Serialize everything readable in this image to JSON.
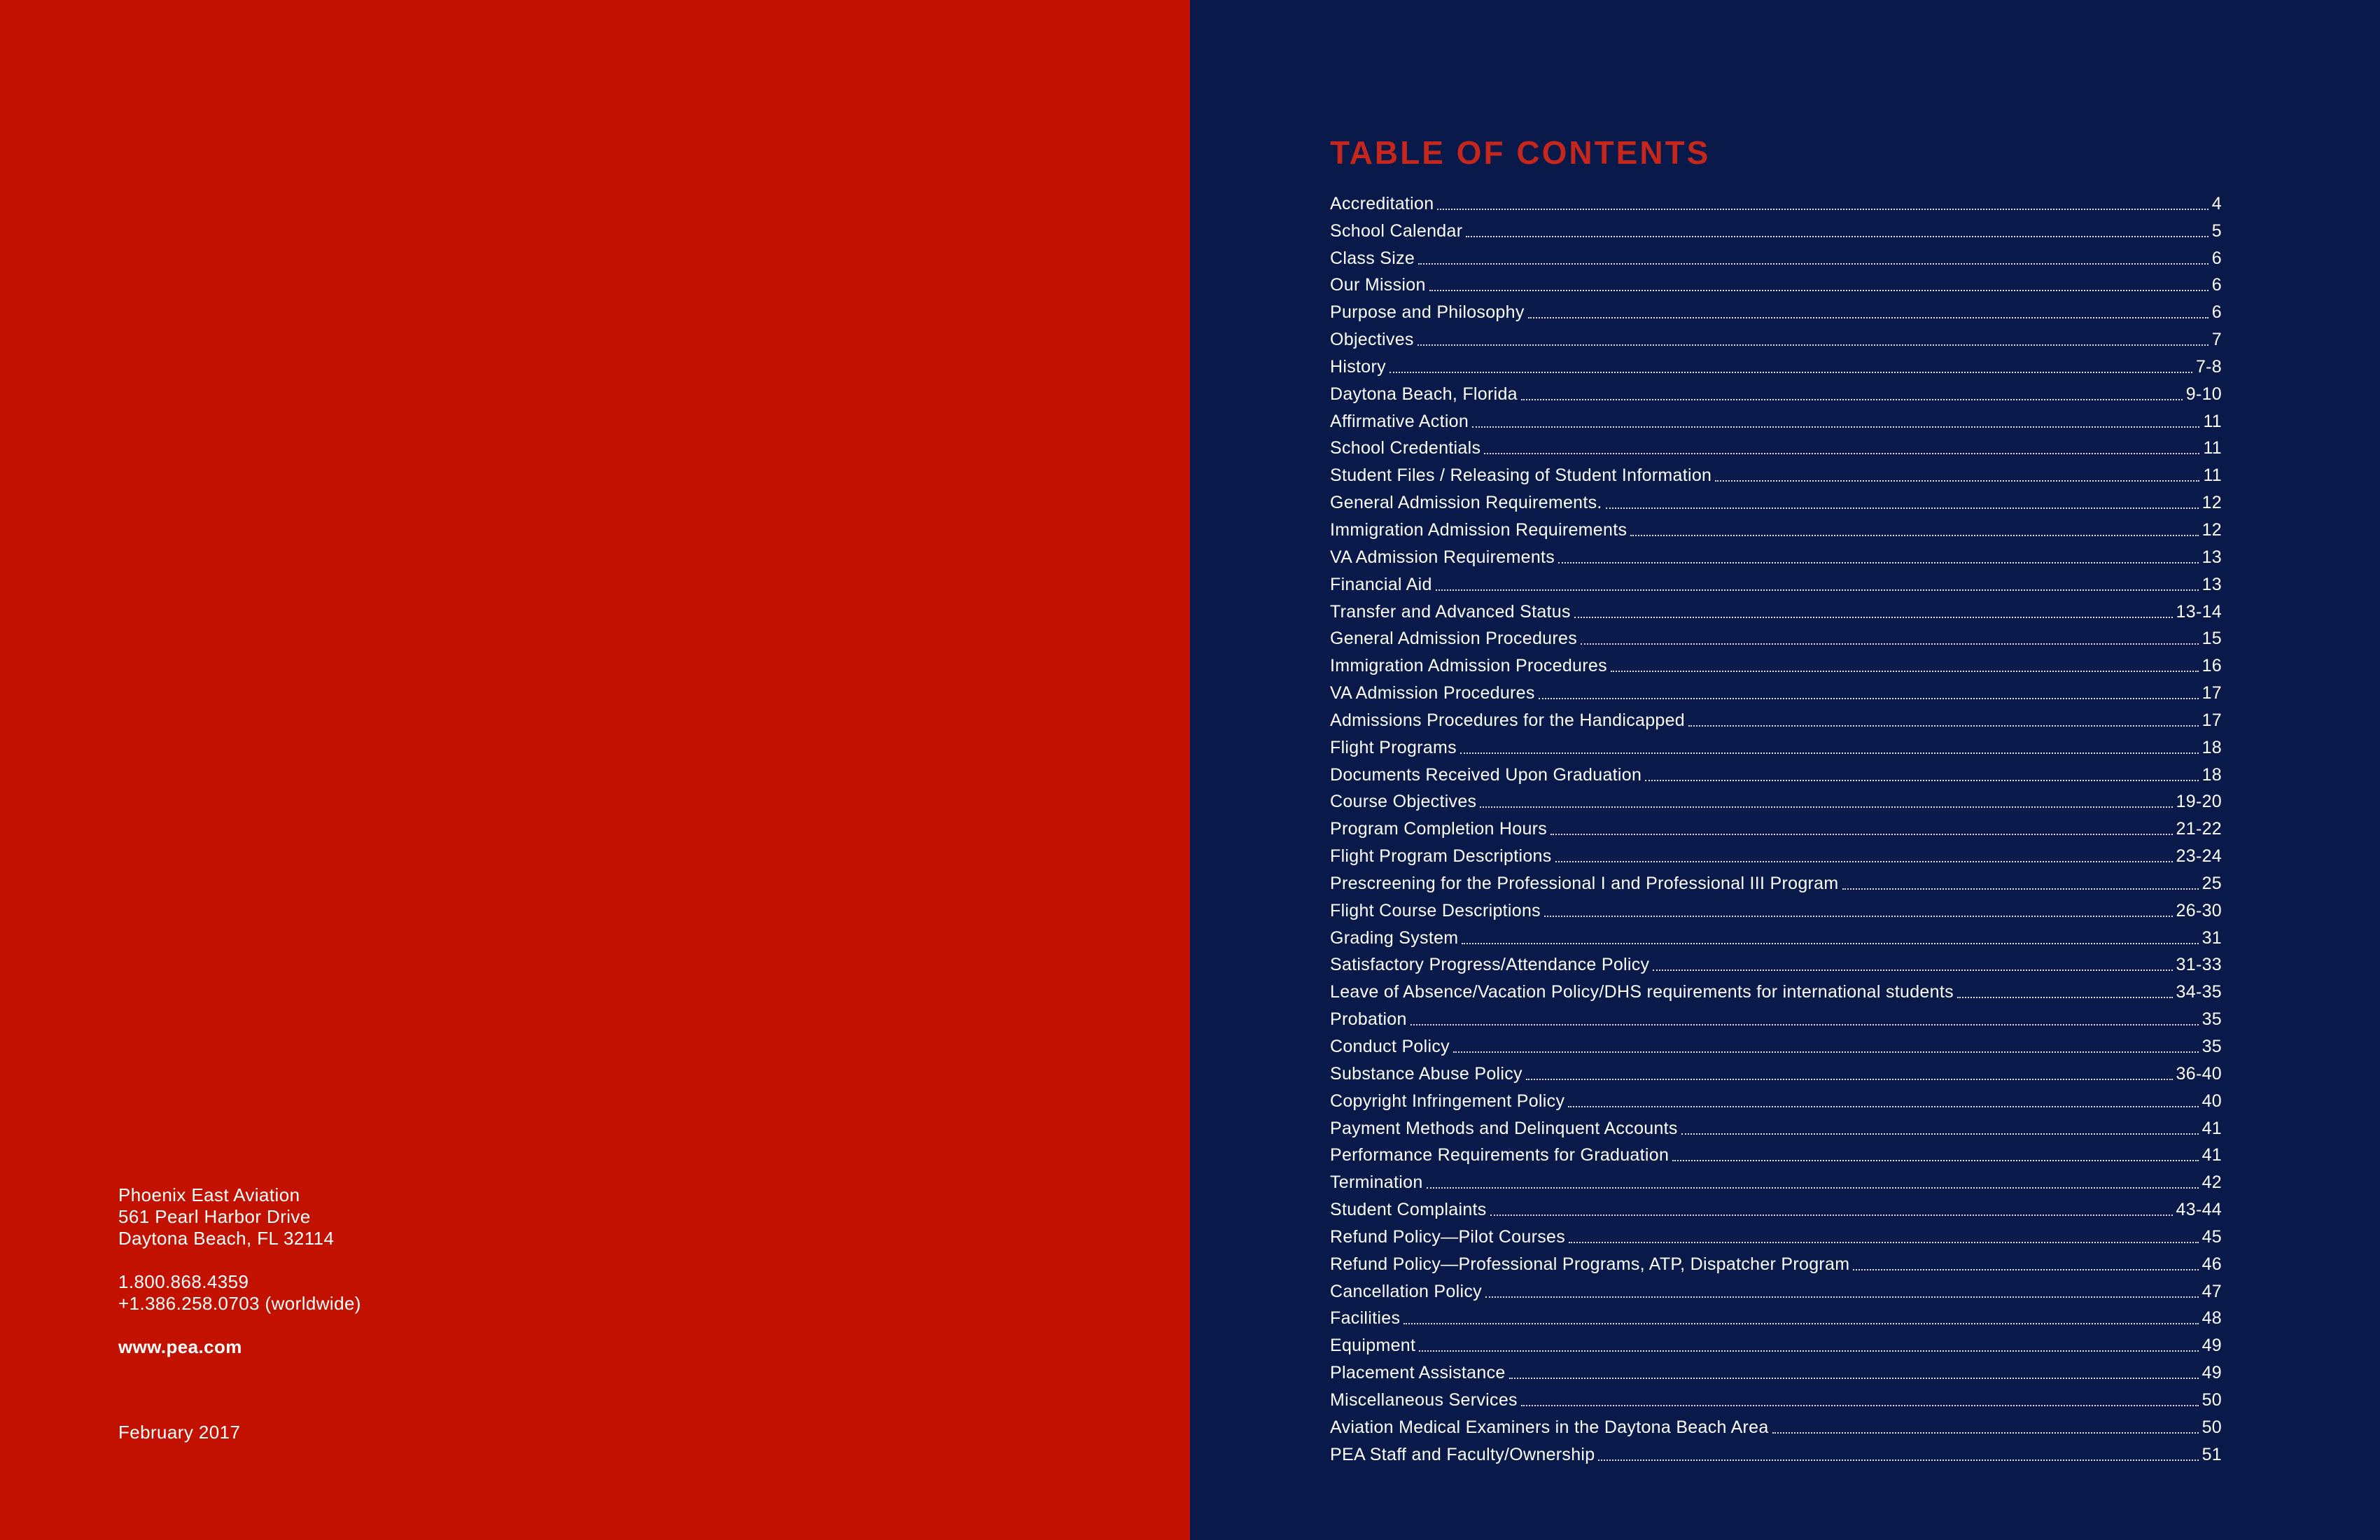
{
  "colors": {
    "left_bg": "#c31100",
    "right_bg": "#08194a",
    "title_red": "#c5271c",
    "text_white": "#ffffff"
  },
  "left_panel": {
    "org_name": "Phoenix East Aviation",
    "address_line1": "561 Pearl Harbor Drive",
    "address_line2": "Daytona Beach, FL 32114",
    "phone_tollfree": "1.800.868.4359",
    "phone_worldwide": "+1.386.258.0703 (worldwide)",
    "website": "www.pea.com",
    "date": "February 2017"
  },
  "right_panel": {
    "title": "TABLE OF CONTENTS",
    "entries": [
      {
        "label": "Accreditation",
        "page": "4"
      },
      {
        "label": "School Calendar",
        "page": "5"
      },
      {
        "label": "Class Size",
        "page": "6"
      },
      {
        "label": "Our Mission",
        "page": "6"
      },
      {
        "label": "Purpose and Philosophy",
        "page": "6"
      },
      {
        "label": "Objectives",
        "page": "7"
      },
      {
        "label": "History",
        "page": "7-8"
      },
      {
        "label": "Daytona Beach, Florida",
        "page": "9-10"
      },
      {
        "label": "Affirmative Action",
        "page": "11"
      },
      {
        "label": "School Credentials",
        "page": "11"
      },
      {
        "label": "Student Files / Releasing of Student Information",
        "page": "11"
      },
      {
        "label": "General Admission Requirements.",
        "page": "12"
      },
      {
        "label": "Immigration Admission Requirements",
        "page": "12"
      },
      {
        "label": "VA Admission Requirements",
        "page": "13"
      },
      {
        "label": "Financial Aid",
        "page": "13"
      },
      {
        "label": "Transfer and Advanced Status",
        "page": "13-14"
      },
      {
        "label": "General Admission Procedures",
        "page": "15"
      },
      {
        "label": "Immigration Admission Procedures",
        "page": "16"
      },
      {
        "label": "VA Admission Procedures",
        "page": "17"
      },
      {
        "label": "Admissions Procedures for the Handicapped",
        "page": "17"
      },
      {
        "label": "Flight Programs",
        "page": "18"
      },
      {
        "label": "Documents Received Upon Graduation",
        "page": "18"
      },
      {
        "label": "Course Objectives",
        "page": "19-20"
      },
      {
        "label": "Program Completion Hours",
        "page": "21-22"
      },
      {
        "label": "Flight Program Descriptions",
        "page": "23-24"
      },
      {
        "label": "Prescreening for the Professional I and Professional III Program",
        "page": "25"
      },
      {
        "label": "Flight Course Descriptions",
        "page": "26-30"
      },
      {
        "label": "Grading System",
        "page": "31"
      },
      {
        "label": "Satisfactory Progress/Attendance Policy",
        "page": "31-33"
      },
      {
        "label": "Leave of Absence/Vacation Policy/DHS requirements for international students",
        "page": "34-35"
      },
      {
        "label": "Probation",
        "page": "35"
      },
      {
        "label": "Conduct Policy",
        "page": "35"
      },
      {
        "label": "Substance Abuse Policy",
        "page": "36-40"
      },
      {
        "label": "Copyright Infringement Policy",
        "page": "40"
      },
      {
        "label": "Payment Methods and Delinquent Accounts",
        "page": "41"
      },
      {
        "label": "Performance Requirements for Graduation",
        "page": "41"
      },
      {
        "label": "Termination",
        "page": "42"
      },
      {
        "label": "Student Complaints",
        "page": "43-44"
      },
      {
        "label": "Refund Policy—Pilot Courses",
        "page": "45"
      },
      {
        "label": "Refund Policy—Professional Programs, ATP, Dispatcher Program",
        "page": "46"
      },
      {
        "label": "Cancellation Policy",
        "page": "47"
      },
      {
        "label": "Facilities",
        "page": "48"
      },
      {
        "label": "Equipment",
        "page": "49"
      },
      {
        "label": "Placement Assistance",
        "page": "49"
      },
      {
        "label": "Miscellaneous Services",
        "page": "50"
      },
      {
        "label": "Aviation Medical Examiners in the Daytona Beach Area",
        "page": "50"
      },
      {
        "label": "PEA Staff and Faculty/Ownership",
        "page": "51"
      }
    ]
  }
}
